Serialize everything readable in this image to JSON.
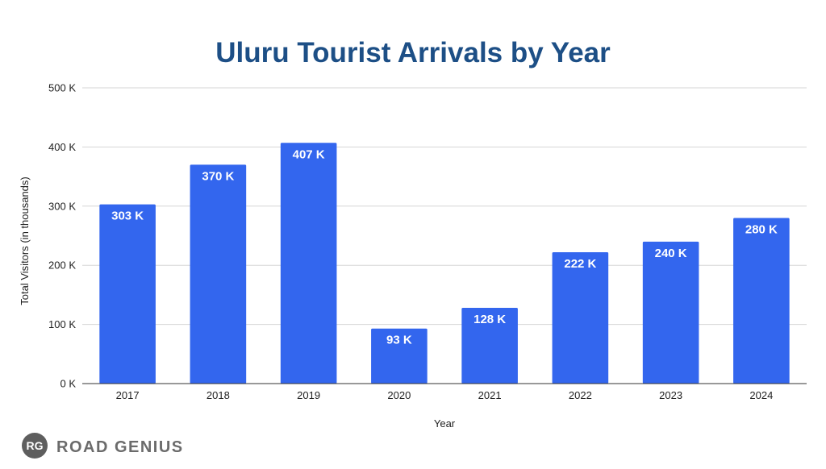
{
  "colors": {
    "bar": "#3366ee",
    "title": "#1d4f86",
    "grid": "#d6d6d6",
    "axis": "#333333",
    "brand_bg": "#5e5e5e"
  },
  "brand": {
    "monogram": "RG",
    "name": "ROAD GENIUS"
  },
  "chart_data": {
    "type": "bar",
    "title": "Uluru Tourist Arrivals by Year",
    "xlabel": "Year",
    "ylabel": "Total Visitors (in thousands)",
    "categories": [
      "2017",
      "2018",
      "2019",
      "2020",
      "2021",
      "2022",
      "2023",
      "2024"
    ],
    "values": [
      303,
      370,
      407,
      93,
      128,
      222,
      240,
      280
    ],
    "data_labels": [
      "303 K",
      "370 K",
      "407 K",
      "93 K",
      "128 K",
      "222 K",
      "240 K",
      "280 K"
    ],
    "ylim": [
      0,
      500
    ],
    "yticks": [
      0,
      100,
      200,
      300,
      400,
      500
    ],
    "ytick_labels": [
      "0 K",
      "100 K",
      "200 K",
      "300 K",
      "400 K",
      "500 K"
    ],
    "grid": true,
    "legend": "none"
  }
}
